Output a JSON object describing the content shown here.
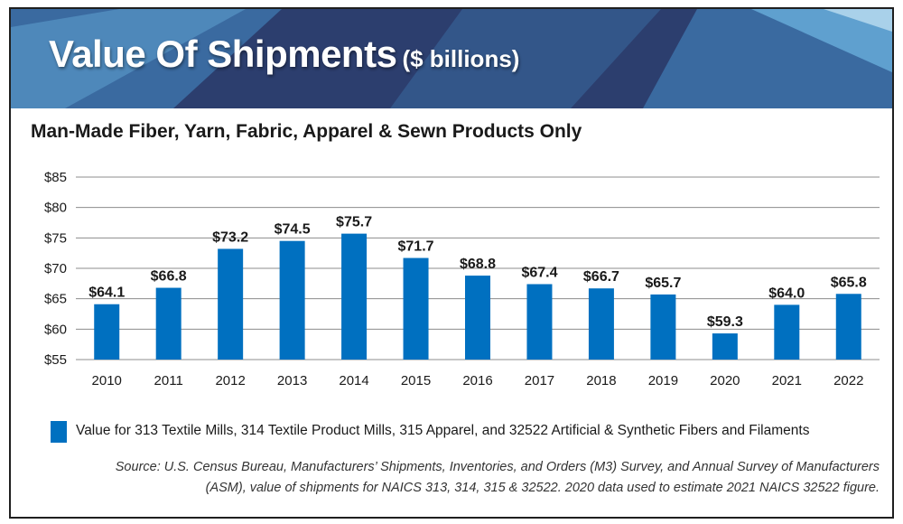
{
  "header": {
    "title": "Value Of Shipments",
    "title_unit": "($ billions)",
    "colors": {
      "dark": "#2c3e6e",
      "mid": "#3a6aa0",
      "light": "#5fa0cf",
      "pale": "#a9d1ea"
    }
  },
  "subtitle": "Man-Made Fiber, Yarn, Fabric, Apparel & Sewn Products Only",
  "chart_data": {
    "type": "bar",
    "categories": [
      "2010",
      "2011",
      "2012",
      "2013",
      "2014",
      "2015",
      "2016",
      "2017",
      "2018",
      "2019",
      "2020",
      "2021",
      "2022"
    ],
    "values": [
      64.1,
      66.8,
      73.2,
      74.5,
      75.7,
      71.7,
      68.8,
      67.4,
      66.7,
      65.7,
      59.3,
      64.0,
      65.8
    ],
    "value_labels": [
      "$64.1",
      "$66.8",
      "$73.2",
      "$74.5",
      "$75.7",
      "$71.7",
      "$68.8",
      "$67.4",
      "$66.7",
      "$65.7",
      "$59.3",
      "$64.0",
      "$65.8"
    ],
    "ylim": [
      55,
      85
    ],
    "yticks": [
      55,
      60,
      65,
      70,
      75,
      80,
      85
    ],
    "ytick_labels": [
      "$55",
      "$60",
      "$65",
      "$70",
      "$75",
      "$80",
      "$85"
    ],
    "grid": true,
    "bar_color": "#0070c0",
    "xlabel": "",
    "ylabel": ""
  },
  "legend": {
    "label": "Value for 313 Textile Mills, 314 Textile Product Mills, 315 Apparel, and 32522 Artificial & Synthetic Fibers and Filaments",
    "color": "#0070c0"
  },
  "source": {
    "line1": "Source: U.S. Census Bureau, Manufacturers’ Shipments, Inventories, and Orders (M3) Survey, and Annual Survey of Manufacturers",
    "line2": "(ASM), value of shipments for NAICS 313, 314, 315 & 32522.  2020 data used to estimate 2021 NAICS 32522 figure."
  }
}
